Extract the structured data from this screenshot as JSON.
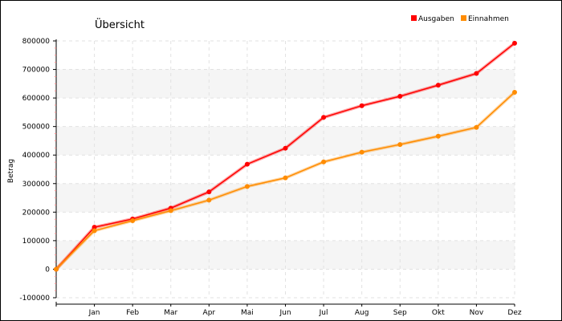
{
  "chart_data": {
    "type": "line",
    "title": "Übersicht",
    "xlabel": "",
    "ylabel": "Betrag",
    "categories": [
      "Jan",
      "Feb",
      "Mar",
      "Apr",
      "Mai",
      "Jun",
      "Jul",
      "Aug",
      "Sep",
      "Okt",
      "Nov",
      "Dez"
    ],
    "x_origin_label": "",
    "ylim": [
      -100000,
      800000
    ],
    "yticks": [
      -100000,
      0,
      100000,
      200000,
      300000,
      400000,
      500000,
      600000,
      700000,
      800000
    ],
    "ytick_labels": [
      "-100000",
      "0",
      "100000",
      "200000",
      "300000",
      "400000",
      "500000",
      "600000",
      "700000",
      "800000"
    ],
    "grid": true,
    "legend_position": "top-right",
    "series": [
      {
        "name": "Ausgaben",
        "color": "#ff0000",
        "start_value": 0,
        "values": [
          147000,
          176000,
          214000,
          271000,
          368000,
          424000,
          532000,
          573000,
          606000,
          645000,
          686000,
          792000
        ]
      },
      {
        "name": "Einnahmen",
        "color": "#ff8c00",
        "start_value": 0,
        "values": [
          135000,
          170000,
          205000,
          242000,
          290000,
          320000,
          376000,
          410000,
          437000,
          466000,
          497000,
          620000
        ]
      }
    ]
  }
}
